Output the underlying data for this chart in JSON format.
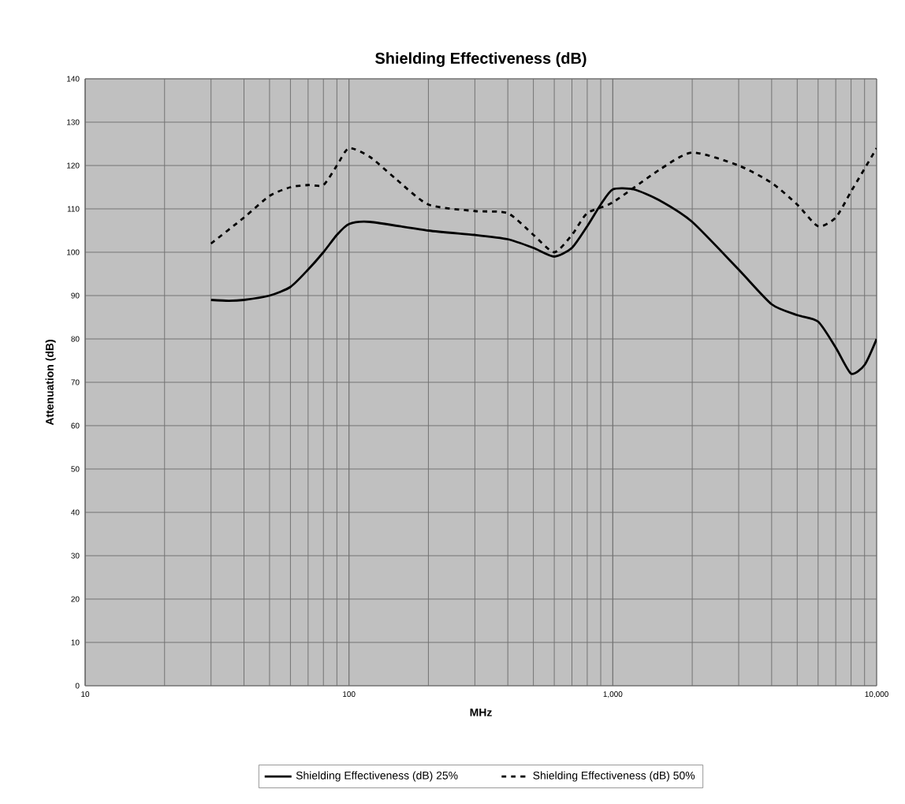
{
  "chart_data": {
    "type": "line",
    "title": "Shielding Effectiveness (dB)",
    "xlabel": "MHz",
    "ylabel": "Attenuation (dB)",
    "log": "x",
    "xlim": [
      10,
      10000
    ],
    "xticks": [
      10,
      100,
      {
        "value": 1000,
        "label": "1,000"
      },
      {
        "value": 10000,
        "label": "10,000"
      }
    ],
    "ylim": [
      0,
      140
    ],
    "yticks": [
      0,
      10,
      20,
      30,
      40,
      50,
      60,
      70,
      80,
      90,
      100,
      110,
      120,
      130,
      140
    ],
    "grid": true,
    "legend": "bottom",
    "marker": "none",
    "series": [
      {
        "name": "Shielding Effectiveness (dB) 25%",
        "color": "#000000",
        "line_style": "solid",
        "x": [
          30,
          35,
          40,
          50,
          60,
          70,
          80,
          90,
          100,
          120,
          200,
          300,
          400,
          500,
          600,
          700,
          800,
          900,
          1000,
          1200,
          1500,
          2000,
          3000,
          4000,
          5000,
          6000,
          7000,
          8000,
          9000,
          10000
        ],
        "values": [
          89,
          88.8,
          89,
          90,
          92,
          96,
          100,
          104,
          106.5,
          107,
          105,
          104,
          103,
          101,
          99,
          101,
          106,
          111,
          114.5,
          114.5,
          112,
          107,
          96,
          88,
          85.5,
          84,
          78,
          72,
          74,
          80
        ]
      },
      {
        "name": "Shielding Effectiveness (dB) 50%",
        "color": "#000000",
        "line_style": "dashed",
        "x": [
          30,
          40,
          50,
          60,
          70,
          80,
          90,
          100,
          120,
          150,
          200,
          300,
          400,
          500,
          600,
          700,
          800,
          1000,
          1500,
          2000,
          3000,
          4000,
          5000,
          6000,
          7000,
          8000,
          10000
        ],
        "values": [
          102,
          108,
          113,
          115,
          115.5,
          115.5,
          120,
          124,
          122,
          117,
          111,
          109.5,
          109,
          104,
          100,
          104,
          109,
          111.5,
          119,
          123,
          120,
          116,
          111,
          106,
          108,
          114,
          124
        ]
      }
    ]
  }
}
